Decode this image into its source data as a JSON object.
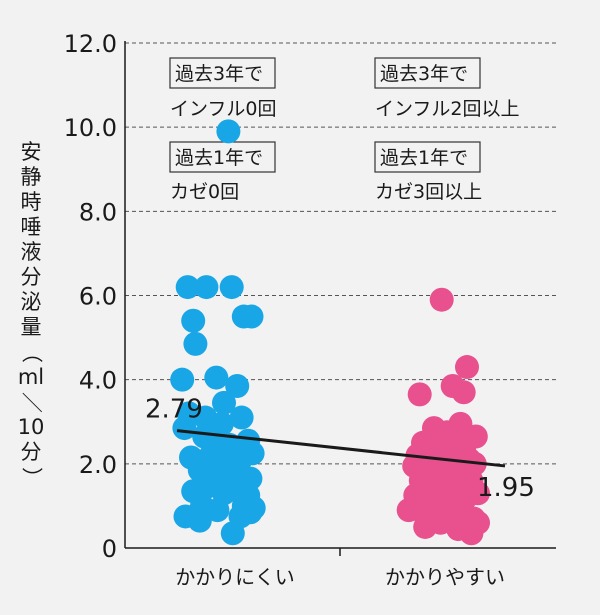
{
  "chart_data": {
    "type": "scatter",
    "ylabel_chars": [
      "安",
      "静",
      "時",
      "唾",
      "液",
      "分",
      "泌",
      "量",
      "（",
      "ml",
      "／",
      "10",
      "分",
      "）"
    ],
    "ylim": [
      0,
      12
    ],
    "yticks": [
      "0",
      "2.0",
      "4.0",
      "6.0",
      "8.0",
      "10.0",
      "12.0"
    ],
    "grid": true,
    "categories": [
      "かかりにくい",
      "かかりやすい"
    ],
    "annotations": {
      "left_box1": "過去3年で",
      "left_text1": "インフル0回",
      "left_box2": "過去1年で",
      "left_text2": "カゼ0回",
      "right_box1": "過去3年で",
      "right_text1": "インフル2回以上",
      "right_box2": "過去1年で",
      "right_text2": "カゼ3回以上"
    },
    "trend": {
      "start_label": "2.79",
      "end_label": "1.95",
      "start_value": 2.79,
      "end_value": 1.95
    },
    "colors": {
      "blue": "#19a6e6",
      "pink": "#e8508e",
      "trend": "#1a1a1a"
    },
    "series": [
      {
        "category": "かかりにくい",
        "color": "#19a6e6",
        "points": [
          [
            -0.06,
            9.9
          ],
          [
            -0.43,
            6.2
          ],
          [
            -0.26,
            6.2
          ],
          [
            -0.03,
            6.2
          ],
          [
            -0.38,
            5.4
          ],
          [
            0.08,
            5.5
          ],
          [
            0.15,
            5.5
          ],
          [
            -0.36,
            4.85
          ],
          [
            -0.48,
            4.0
          ],
          [
            -0.17,
            4.05
          ],
          [
            0.02,
            3.85
          ],
          [
            -0.1,
            3.45
          ],
          [
            -0.42,
            3.2
          ],
          [
            -0.27,
            3.1
          ],
          [
            -0.12,
            2.95
          ],
          [
            0.06,
            3.1
          ],
          [
            -0.46,
            2.85
          ],
          [
            -0.28,
            2.65
          ],
          [
            -0.17,
            2.55
          ],
          [
            -0.05,
            2.45
          ],
          [
            0.12,
            2.55
          ],
          [
            -0.4,
            2.15
          ],
          [
            -0.22,
            2.2
          ],
          [
            -0.08,
            2.0
          ],
          [
            0.05,
            2.1
          ],
          [
            0.16,
            2.25
          ],
          [
            -0.32,
            1.85
          ],
          [
            -0.2,
            1.75
          ],
          [
            -0.12,
            1.7
          ],
          [
            0.01,
            1.8
          ],
          [
            0.14,
            1.65
          ],
          [
            -0.38,
            1.35
          ],
          [
            -0.26,
            1.45
          ],
          [
            -0.1,
            1.3
          ],
          [
            0.03,
            1.4
          ],
          [
            0.12,
            1.25
          ],
          [
            -0.3,
            1.0
          ],
          [
            -0.16,
            0.9
          ],
          [
            0.08,
            1.0
          ],
          [
            0.17,
            0.95
          ],
          [
            -0.45,
            0.75
          ],
          [
            -0.32,
            0.65
          ],
          [
            0.05,
            0.75
          ],
          [
            0.14,
            0.85
          ],
          [
            -0.02,
            0.35
          ]
        ]
      },
      {
        "category": "かかりやすい",
        "color": "#e8508e",
        "points": [
          [
            -0.03,
            5.9
          ],
          [
            0.2,
            4.3
          ],
          [
            0.07,
            3.85
          ],
          [
            0.17,
            3.7
          ],
          [
            -0.23,
            3.65
          ],
          [
            -0.1,
            2.85
          ],
          [
            0.02,
            2.75
          ],
          [
            0.14,
            2.95
          ],
          [
            -0.2,
            2.5
          ],
          [
            -0.08,
            2.55
          ],
          [
            0.05,
            2.45
          ],
          [
            0.18,
            2.45
          ],
          [
            0.28,
            2.65
          ],
          [
            -0.25,
            2.2
          ],
          [
            -0.13,
            2.15
          ],
          [
            -0.02,
            2.3
          ],
          [
            0.1,
            2.2
          ],
          [
            0.22,
            2.1
          ],
          [
            -0.28,
            1.95
          ],
          [
            -0.17,
            1.85
          ],
          [
            -0.05,
            1.9
          ],
          [
            0.06,
            1.85
          ],
          [
            0.17,
            1.95
          ],
          [
            0.27,
            2.0
          ],
          [
            -0.22,
            1.6
          ],
          [
            -0.1,
            1.55
          ],
          [
            0.0,
            1.6
          ],
          [
            0.12,
            1.5
          ],
          [
            0.24,
            1.6
          ],
          [
            -0.27,
            1.25
          ],
          [
            -0.15,
            1.15
          ],
          [
            -0.05,
            1.25
          ],
          [
            0.07,
            1.1
          ],
          [
            0.19,
            1.2
          ],
          [
            0.3,
            1.3
          ],
          [
            -0.33,
            0.9
          ],
          [
            -0.2,
            0.85
          ],
          [
            -0.08,
            0.9
          ],
          [
            0.04,
            0.8
          ],
          [
            0.16,
            0.9
          ],
          [
            0.26,
            0.7
          ],
          [
            -0.18,
            0.5
          ],
          [
            -0.04,
            0.6
          ],
          [
            0.12,
            0.45
          ],
          [
            0.24,
            0.35
          ],
          [
            0.3,
            0.6
          ]
        ]
      }
    ]
  }
}
